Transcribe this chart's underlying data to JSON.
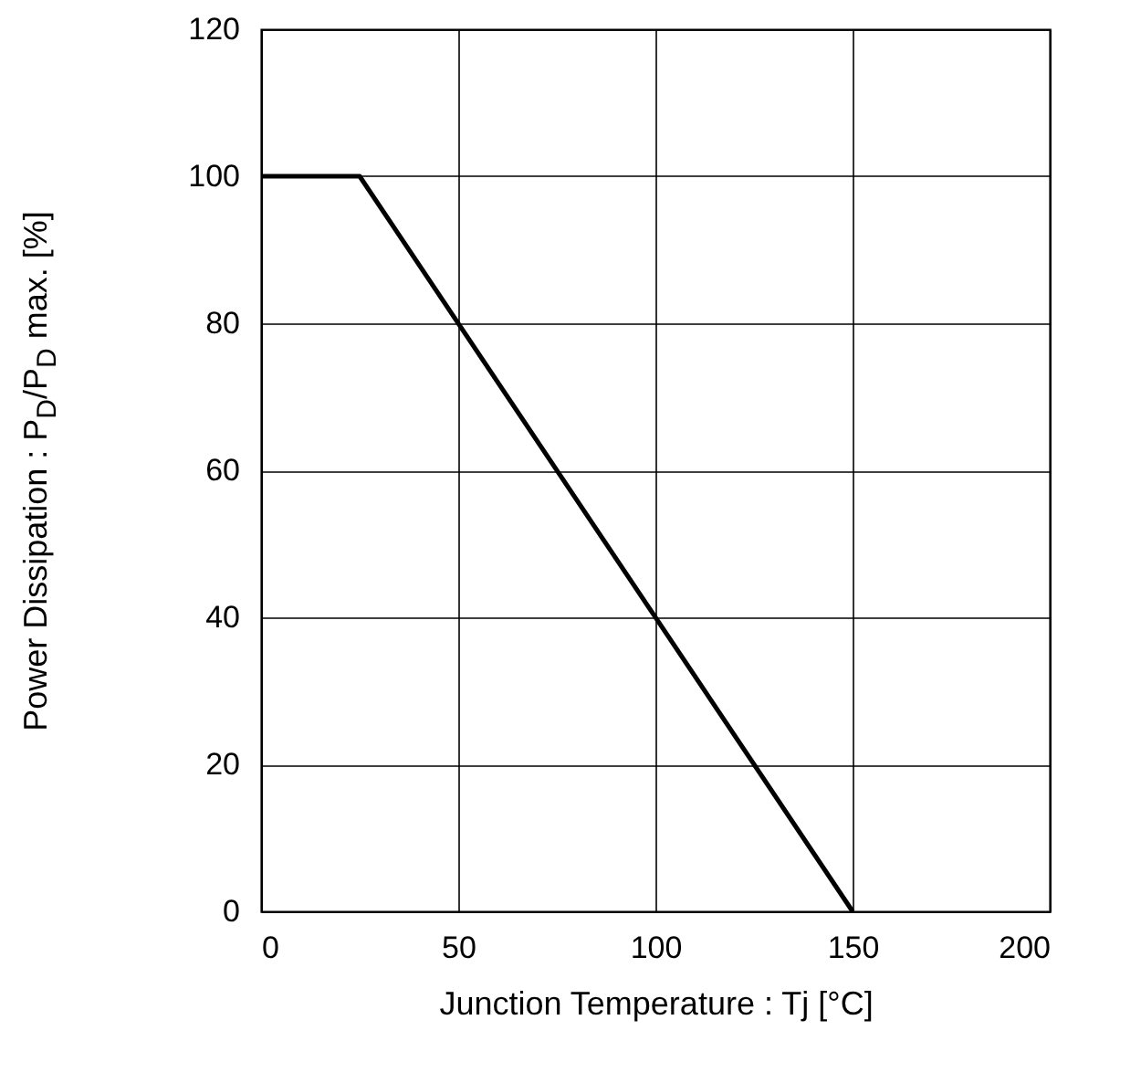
{
  "chart_data": {
    "type": "line",
    "xlabel": "Junction Temperature : Tj [°C]",
    "ylabel": "Power Dissipation  : P$_{D}$/P$_{D}$ max. [%]",
    "x": [
      0,
      25,
      150
    ],
    "values": [
      100,
      100,
      0
    ],
    "color": "#000000",
    "line_style": "solid",
    "marker": "none",
    "xlim": [
      0,
      200
    ],
    "xticks": [
      0,
      50,
      100,
      150,
      200
    ],
    "ylim": [
      0,
      120
    ],
    "yticks": [
      0,
      20,
      40,
      60,
      80,
      100,
      120
    ],
    "grid": true
  }
}
